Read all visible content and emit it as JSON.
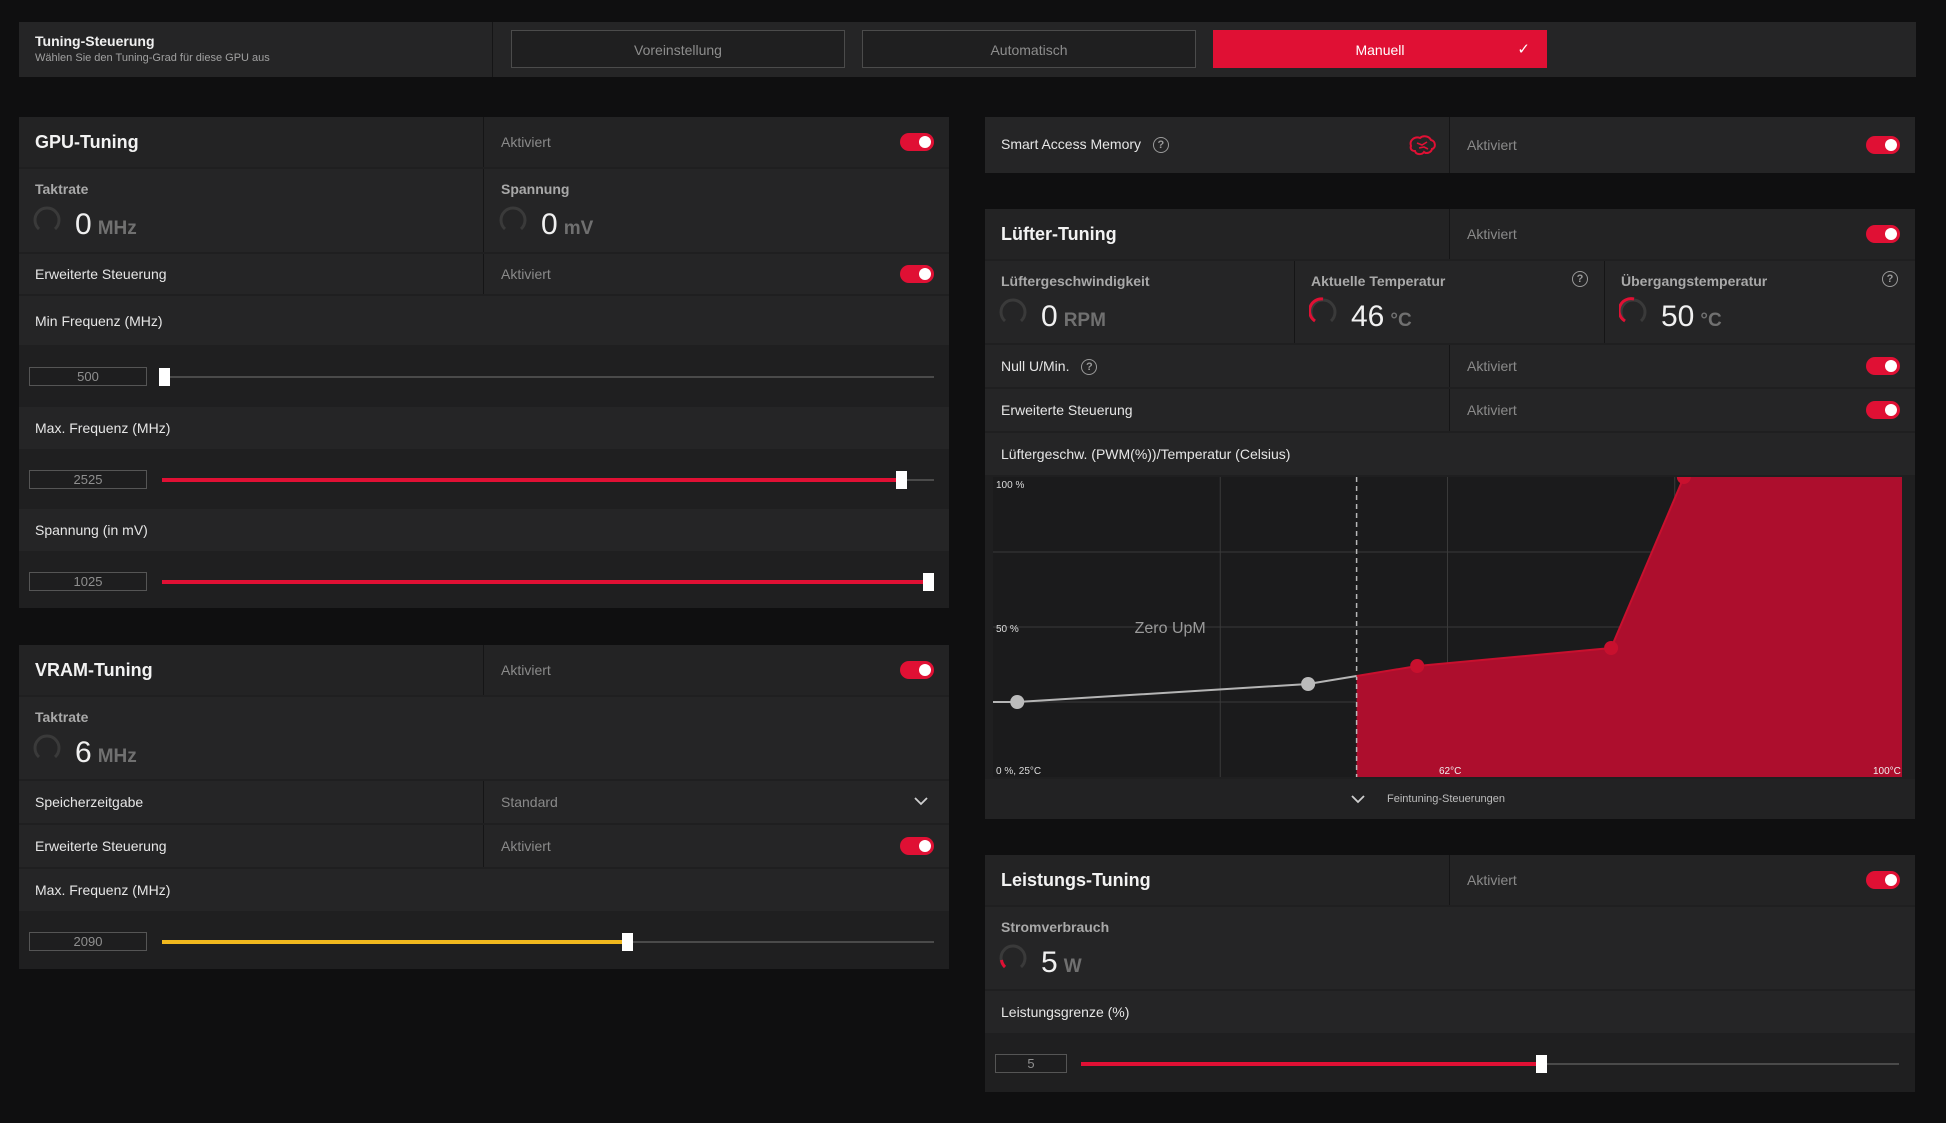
{
  "tuning_control": {
    "title": "Tuning-Steuerung",
    "subtitle": "Wählen Sie den Tuning-Grad für diese GPU aus",
    "buttons": [
      "Voreinstellung",
      "Automatisch",
      "Manuell"
    ],
    "selected": "Manuell",
    "check_glyph": "✓"
  },
  "gpu": {
    "title": "GPU-Tuning",
    "status": "Aktiviert",
    "clock": {
      "label": "Taktrate",
      "value": "0",
      "unit": "MHz"
    },
    "voltage": {
      "label": "Spannung",
      "value": "0",
      "unit": "mV"
    },
    "advanced": {
      "label": "Erweiterte Steuerung",
      "status": "Aktiviert"
    },
    "min_freq": {
      "label": "Min Frequenz (MHz)",
      "value": "500",
      "fraction": 0.0
    },
    "max_freq": {
      "label": "Max. Frequenz (MHz)",
      "value": "2525",
      "fraction": 0.955
    },
    "voltage_mv": {
      "label": "Spannung (in mV)",
      "value": "1025",
      "fraction": 0.99
    }
  },
  "vram": {
    "title": "VRAM-Tuning",
    "status": "Aktiviert",
    "clock": {
      "label": "Taktrate",
      "value": "6",
      "unit": "MHz"
    },
    "timing": {
      "label": "Speicherzeitgabe",
      "value": "Standard"
    },
    "advanced": {
      "label": "Erweiterte Steuerung",
      "status": "Aktiviert"
    },
    "max_freq": {
      "label": "Max. Frequenz (MHz)",
      "value": "2090",
      "fraction": 0.6
    }
  },
  "sam": {
    "label": "Smart Access Memory",
    "status": "Aktiviert"
  },
  "fan": {
    "title": "Lüfter-Tuning",
    "status": "Aktiviert",
    "speed": {
      "label": "Lüftergeschwindigkeit",
      "value": "0",
      "unit": "RPM"
    },
    "temp": {
      "label": "Aktuelle Temperatur",
      "value": "46",
      "unit": "°C"
    },
    "junction": {
      "label": "Übergangstemperatur",
      "value": "50",
      "unit": "°C"
    },
    "zero_rpm": {
      "label": "Null U/Min.",
      "status": "Aktiviert"
    },
    "advanced": {
      "label": "Erweiterte Steuerung",
      "status": "Aktiviert"
    },
    "curve_title": "Lüftergeschw. (PWM(%))/Temperatur (Celsius)",
    "fine_tune": "Feintuning-Steuerungen"
  },
  "power": {
    "title": "Leistungs-Tuning",
    "status": "Aktiviert",
    "consumption": {
      "label": "Stromverbrauch",
      "value": "5",
      "unit": "W"
    },
    "limit": {
      "label": "Leistungsgrenze (%)",
      "value": "5",
      "fraction": 0.56
    }
  },
  "chart_data": {
    "type": "area",
    "title": "Lüftergeschw. (PWM(%))/Temperatur (Celsius)",
    "x_unit": "°C",
    "y_unit": "%",
    "xlim": [
      25,
      100
    ],
    "ylim": [
      0,
      100
    ],
    "y_tick_labels": [
      "100 %",
      "50 %",
      "0 %, 25°C"
    ],
    "x_tick_labels": [
      "62°C",
      "100°C"
    ],
    "annotation": "Zero UpM",
    "zero_rpm_threshold": 55,
    "points": [
      {
        "x": 27,
        "y": 25,
        "active": false
      },
      {
        "x": 51,
        "y": 31,
        "active": false
      },
      {
        "x": 60,
        "y": 37,
        "active": true
      },
      {
        "x": 76,
        "y": 43,
        "active": true
      },
      {
        "x": 82,
        "y": 100,
        "active": true
      }
    ],
    "colors": {
      "active": "#c8102e",
      "inactive": "#bbbbbb"
    }
  },
  "colors": {
    "accent": "#e01034",
    "vram_fill": "#f0b81e"
  }
}
